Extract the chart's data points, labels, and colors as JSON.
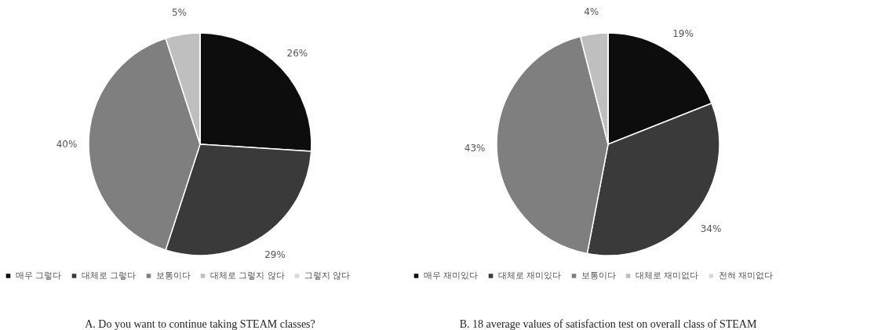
{
  "chart_data": [
    {
      "type": "pie",
      "title": "A. Do you want to continue taking STEAM classes?",
      "categories": [
        "매우 그렇다",
        "대체로 그렇다",
        "보통이다",
        "대체로 그렇지 않다",
        "그렇지 않다"
      ],
      "values": [
        26,
        29,
        40,
        5,
        0
      ],
      "value_labels": [
        "26%",
        "29%",
        "40%",
        "5%",
        null
      ],
      "colors": [
        "#0d0d0d",
        "#3a3a3a",
        "#7f7f7f",
        "#bfbfbf",
        "#d9d9d9"
      ],
      "legend": "bottom"
    },
    {
      "type": "pie",
      "title": "B. 18 average values of satisfaction test on overall class of STEAM",
      "categories": [
        "매우 재미있다",
        "대체로 재미있다",
        "보통이다",
        "대체로 재미없다",
        "전혀 재미없다"
      ],
      "values": [
        19,
        34,
        43,
        4,
        0
      ],
      "value_labels": [
        "19%",
        "34%",
        "43%",
        "4%",
        null
      ],
      "colors": [
        "#0d0d0d",
        "#3a3a3a",
        "#7f7f7f",
        "#bfbfbf",
        "#d9d9d9"
      ],
      "legend": "bottom"
    }
  ]
}
